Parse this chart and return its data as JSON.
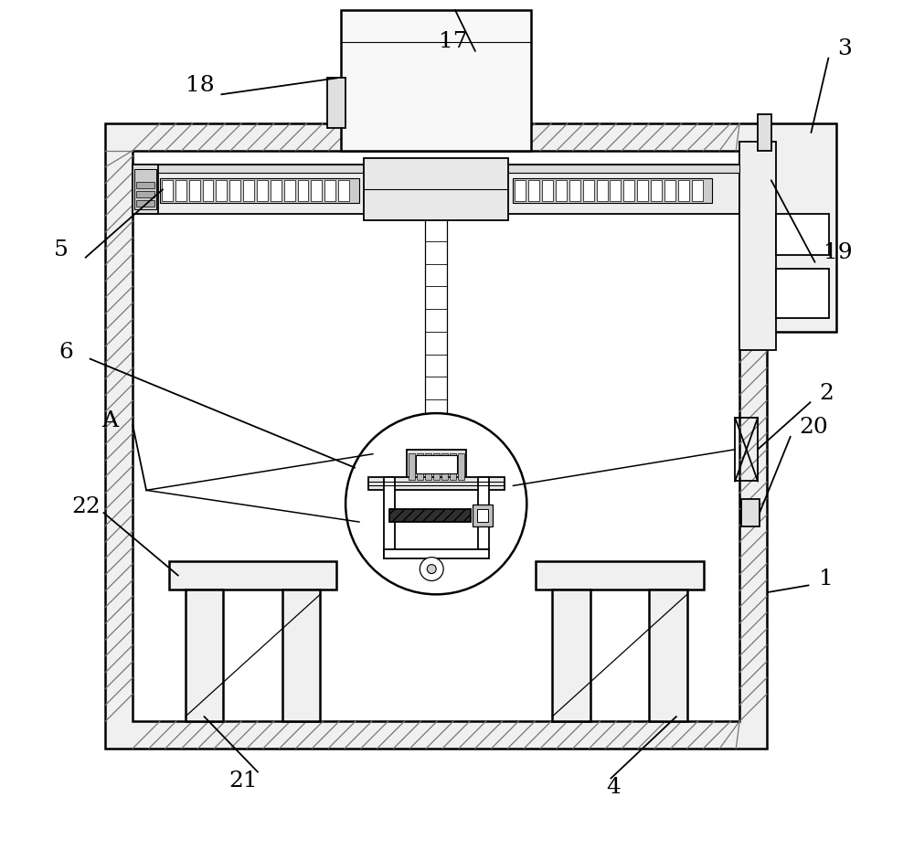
{
  "bg_color": "#ffffff",
  "line_color": "#000000",
  "fig_width": 10.0,
  "fig_height": 9.3,
  "dpi": 100
}
